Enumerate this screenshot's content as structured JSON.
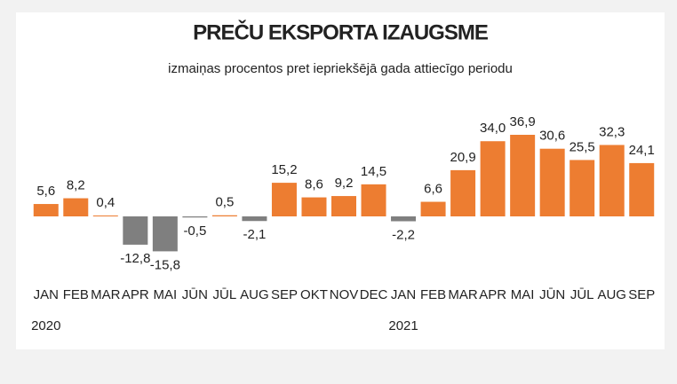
{
  "chart_data": {
    "type": "bar",
    "title": "PREČU EKSPORTA IZAUGSME",
    "subtitle": "izmaiņas procentos pret iepriekšējā gada attiecīgo periodu",
    "categories": [
      "JAN",
      "FEB",
      "MAR",
      "APR",
      "MAI",
      "JŪN",
      "JŪL",
      "AUG",
      "SEP",
      "OKT",
      "NOV",
      "DEC",
      "JAN",
      "FEB",
      "MAR",
      "APR",
      "MAI",
      "JŪN",
      "JŪL",
      "AUG",
      "SEP"
    ],
    "years": [
      "2020",
      null,
      null,
      null,
      null,
      null,
      null,
      null,
      null,
      null,
      null,
      null,
      "2021",
      null,
      null,
      null,
      null,
      null,
      null,
      null,
      null
    ],
    "values": [
      5.6,
      8.2,
      0.4,
      -12.8,
      -15.8,
      -0.5,
      0.5,
      -2.1,
      15.2,
      8.6,
      9.2,
      14.5,
      -2.2,
      6.6,
      20.9,
      34.0,
      36.9,
      30.6,
      25.5,
      32.3,
      24.1
    ],
    "value_labels": [
      "5,6",
      "8,2",
      "0,4",
      "-12,8",
      "-15,8",
      "-0,5",
      "0,5",
      "-2,1",
      "15,2",
      "8,6",
      "9,2",
      "14,5",
      "-2,2",
      "6,6",
      "20,9",
      "34,0",
      "36,9",
      "30,6",
      "25,5",
      "32,3",
      "24,1"
    ],
    "color_positive": "#ed7d31",
    "color_negative": "#7f7f7f"
  }
}
